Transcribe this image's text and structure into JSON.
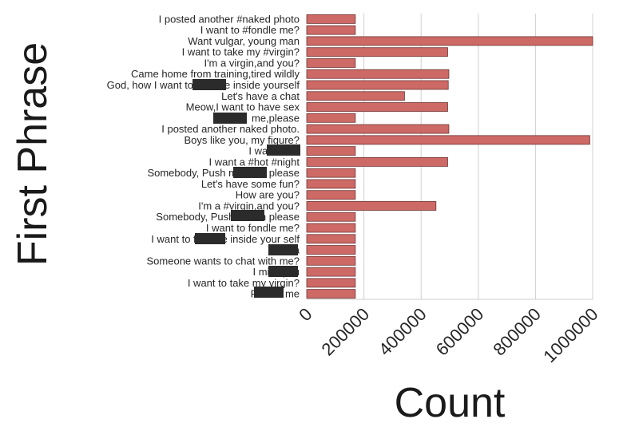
{
  "chart_data": {
    "type": "bar",
    "orientation": "horizontal",
    "xlabel": "Count",
    "ylabel": "First Phrase",
    "xlim": [
      0,
      1000000
    ],
    "xticks": [
      0,
      200000,
      400000,
      600000,
      800000,
      1000000
    ],
    "xtick_labels": [
      "0",
      "200000",
      "400000",
      "600000",
      "800000",
      "1000000"
    ],
    "grid": "vertical",
    "bar_color": "#cd6a66",
    "bar_edge_color": "#6e3533",
    "redaction_color": "#2b2b2b",
    "categories": [
      "I posted another #naked photo",
      "I want to #fondle me?",
      "Want vulgar, young man",
      "I want to take my #virgin?",
      "I'm a virgin,and you?",
      "Came home from training,tired wildly",
      "God, how I want to feel the inside yourself",
      "Let's have a chat",
      "Meow,I want to have sex",
      "me,please",
      "I posted another naked photo.",
      "Boys like you, my figure?",
      "I wanna be",
      "I want a #hot #night",
      "Somebody, Push me on a please",
      "Let's have some fun?",
      "How are you?",
      "I'm a #virgin,and you?",
      "Somebody, Push me on please",
      "I want to fondle me?",
      "I want to feel the inside your self",
      "Like a",
      "Someone wants to chat with me?",
      "I miss you",
      "I want to take my virgin?",
      "Please me"
    ],
    "values": [
      170000,
      170000,
      1000000,
      493000,
      170000,
      497000,
      495000,
      342000,
      493000,
      170000,
      497000,
      990000,
      170000,
      493000,
      170000,
      170000,
      170000,
      452000,
      170000,
      170000,
      170000,
      170000,
      170000,
      170000,
      170000,
      170000
    ]
  }
}
